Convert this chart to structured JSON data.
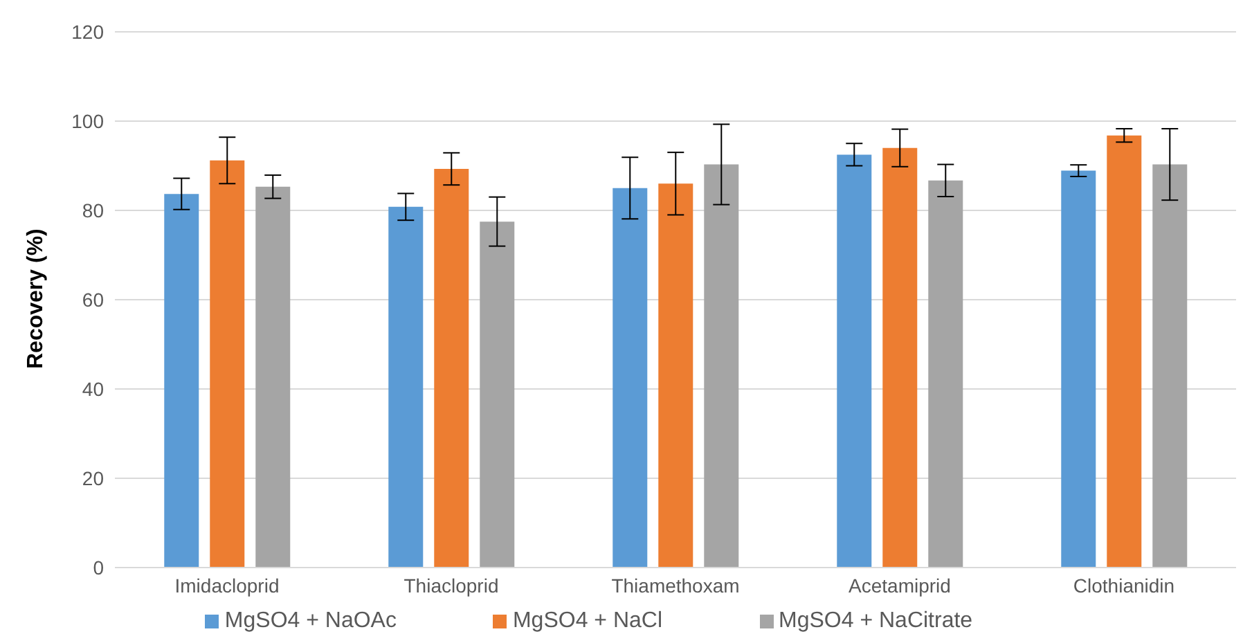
{
  "chart_data": {
    "type": "bar",
    "ylabel": "Recovery (%)",
    "categories": [
      "Imidacloprid",
      "Thiacloprid",
      "Thiamethoxam",
      "Acetamiprid",
      "Clothianidin"
    ],
    "series": [
      {
        "name": "MgSO4 + NaOAc",
        "color": "#5b9bd5",
        "values": [
          83.7,
          80.8,
          85,
          92.5,
          88.9
        ],
        "errors": [
          3.5,
          3,
          6.9,
          2.5,
          1.3
        ]
      },
      {
        "name": "MgSO4 + NaCl",
        "color": "#ed7d31",
        "values": [
          91.2,
          89.3,
          86,
          94,
          96.8
        ],
        "errors": [
          5.2,
          3.6,
          7,
          4.2,
          1.5
        ]
      },
      {
        "name": "MgSO4 + NaCitrate",
        "color": "#a5a5a5",
        "values": [
          85.3,
          77.5,
          90.3,
          86.7,
          90.3
        ],
        "errors": [
          2.6,
          5.5,
          9,
          3.6,
          8
        ]
      }
    ],
    "ylim": [
      0,
      120
    ],
    "yticks": [
      0,
      20,
      40,
      60,
      80,
      100,
      120
    ],
    "grid": "y",
    "legend": "bottom"
  }
}
